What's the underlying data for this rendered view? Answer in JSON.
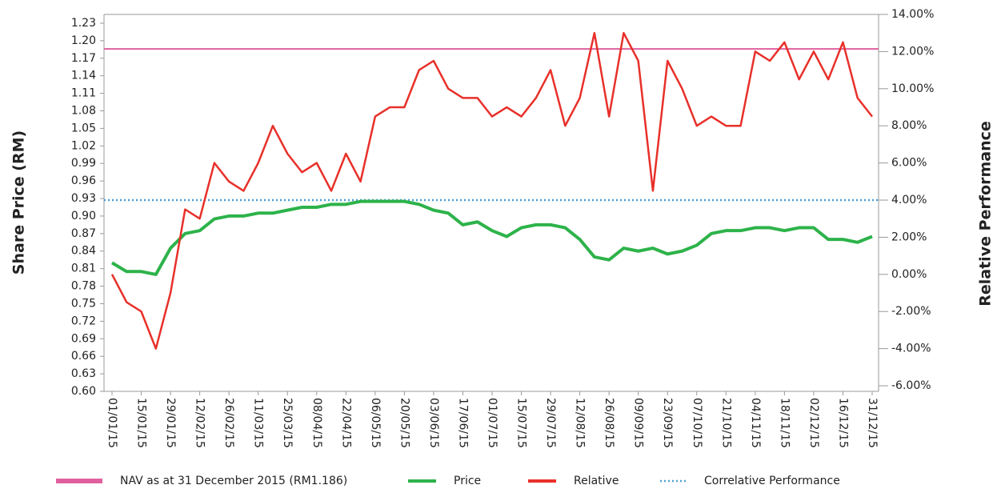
{
  "chart_data": {
    "type": "line",
    "y_label": "Share Price (RM)",
    "y2_label": "Relative Performance",
    "categories": [
      "01/01/15",
      null,
      "15/01/15",
      null,
      "29/01/15",
      null,
      "12/02/15",
      null,
      "26/02/15",
      null,
      "11/03/15",
      null,
      "25/03/15",
      null,
      "08/04/15",
      null,
      "22/04/15",
      null,
      "06/05/15",
      null,
      "20/05/15",
      null,
      "03/06/15",
      null,
      "17/06/15",
      null,
      "01/07/15",
      null,
      "15/07/15",
      null,
      "29/07/15",
      null,
      "12/08/15",
      null,
      "26/08/15",
      null,
      "09/09/15",
      null,
      "23/09/15",
      null,
      "07/10/15",
      null,
      "21/10/15",
      null,
      "04/11/15",
      null,
      "18/11/15",
      null,
      "02/12/15",
      null,
      "16/12/15",
      null,
      "31/12/15"
    ],
    "ylim": [
      0.6,
      1.245
    ],
    "yticks": [
      {
        "value": 0.6,
        "label": "0.60"
      },
      0.63,
      0.66,
      0.69,
      0.72,
      0.75,
      0.78,
      0.81,
      0.84,
      0.87,
      {
        "value": 0.9,
        "label": "0.90"
      },
      0.93,
      0.96,
      0.99,
      1.02,
      1.05,
      1.08,
      1.11,
      1.14,
      1.17,
      {
        "value": 1.2,
        "label": "1.20"
      },
      1.23
    ],
    "y2lim": [
      -6.3,
      14
    ],
    "y2ticks": [
      {
        "value": -6,
        "label": "-6.00%"
      },
      {
        "value": -4,
        "label": "-4.00%"
      },
      {
        "value": -2,
        "label": "-2.00%"
      },
      {
        "value": 0,
        "label": "0.00%"
      },
      {
        "value": 2,
        "label": "2.00%"
      },
      {
        "value": 4,
        "label": "4.00%"
      },
      {
        "value": 6,
        "label": "6.00%"
      },
      {
        "value": 8,
        "label": "8.00%"
      },
      {
        "value": 10,
        "label": "10.00%"
      },
      {
        "value": 12,
        "label": "12.00%"
      },
      {
        "value": 14,
        "label": "14.00%"
      }
    ],
    "reference_lines": [
      {
        "name": "NAV as at 31 December 2015 (RM1.186)",
        "color": "#e0609f",
        "value": 1.186,
        "axis": "y",
        "style": "solid"
      },
      {
        "name": "Correlative Performance",
        "color": "#4a9fd5",
        "value": 4,
        "axis": "y2",
        "style": "dotted"
      }
    ],
    "series": [
      {
        "name": "Price",
        "color": "#2db34a",
        "axis": "y",
        "values": [
          0.82,
          0.805,
          0.805,
          0.8,
          0.845,
          0.87,
          0.875,
          0.895,
          0.9,
          0.9,
          0.905,
          0.905,
          0.91,
          0.915,
          0.915,
          0.92,
          0.92,
          0.925,
          0.925,
          0.925,
          0.925,
          0.92,
          0.91,
          0.905,
          0.885,
          0.89,
          0.875,
          0.865,
          0.88,
          0.885,
          0.885,
          0.88,
          0.86,
          0.83,
          0.825,
          0.845,
          0.84,
          0.845,
          0.835,
          0.84,
          0.85,
          0.87,
          0.875,
          0.875,
          0.88,
          0.88,
          0.875,
          0.88,
          0.88,
          0.86,
          0.86,
          0.855,
          0.865
        ]
      },
      {
        "name": "Relative",
        "color": "#e8302a",
        "axis": "y2",
        "values": [
          0,
          -1.5,
          -2,
          -4,
          -1,
          3.5,
          3,
          6,
          5,
          4.5,
          6,
          8,
          6.5,
          5.5,
          6,
          4.5,
          6.5,
          5,
          8.5,
          9,
          9,
          11,
          11.5,
          10,
          9.5,
          9.5,
          8.5,
          9,
          8.5,
          9.5,
          11,
          8,
          9.5,
          13,
          8.5,
          13,
          11.5,
          4.5,
          11.5,
          10,
          8,
          8.5,
          8,
          8,
          12,
          11.5,
          12.5,
          10.5,
          12,
          10.5,
          12.5,
          9.5,
          8.5
        ]
      }
    ],
    "legend_order": [
      "reference_lines.0",
      "series.0",
      "series.1",
      "reference_lines.1"
    ]
  }
}
